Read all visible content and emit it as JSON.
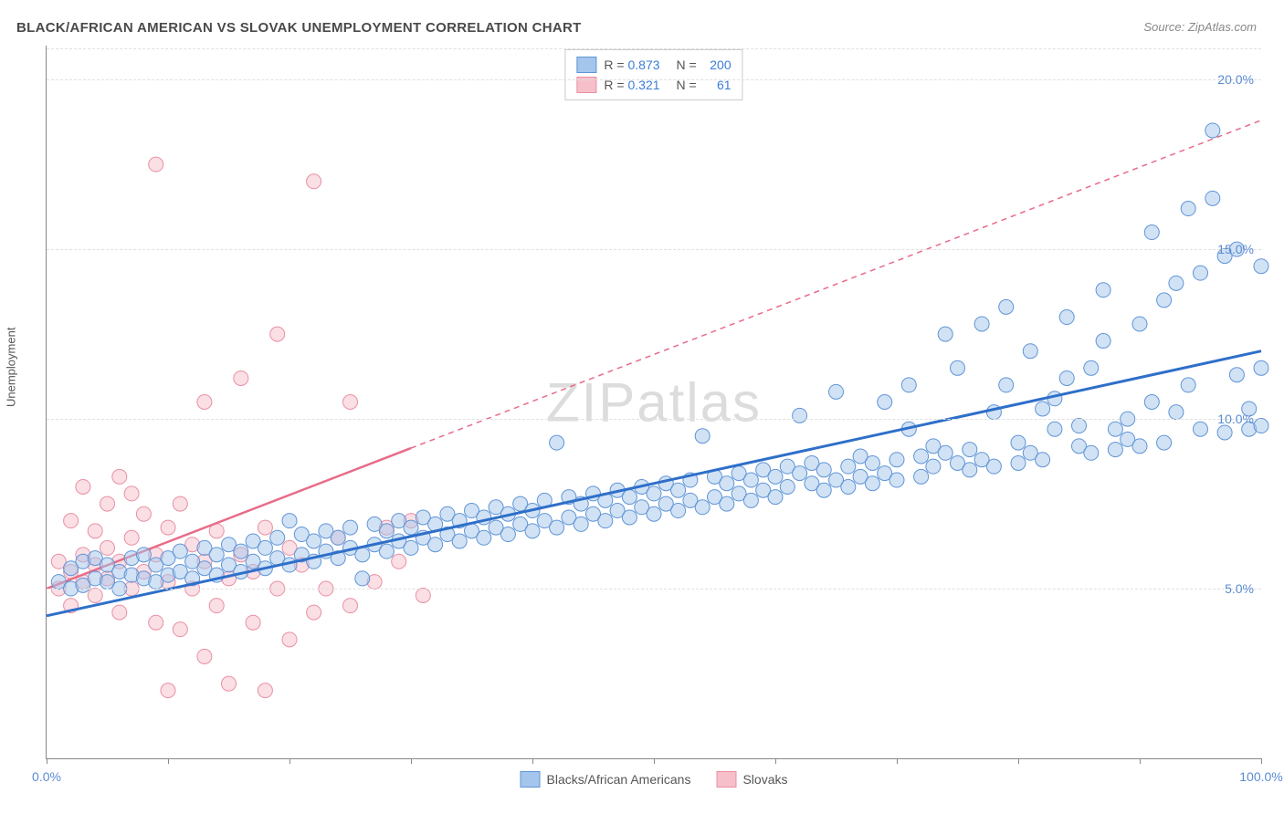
{
  "title": "BLACK/AFRICAN AMERICAN VS SLOVAK UNEMPLOYMENT CORRELATION CHART",
  "source": "Source: ZipAtlas.com",
  "watermark": "ZIPatlas",
  "ylabel": "Unemployment",
  "chart": {
    "type": "scatter",
    "background_color": "#ffffff",
    "grid_color": "#e0e0e0",
    "axis_color": "#888888",
    "marker_radius": 8,
    "marker_opacity": 0.5,
    "xlim": [
      0,
      100
    ],
    "ylim": [
      0,
      21
    ],
    "xticks": [
      0,
      10,
      20,
      30,
      40,
      50,
      60,
      70,
      80,
      90,
      100
    ],
    "xtick_labels_shown": {
      "0": "0.0%",
      "100": "100.0%"
    },
    "yticks": [
      5,
      10,
      15,
      20
    ],
    "ytick_labels": [
      "5.0%",
      "10.0%",
      "15.0%",
      "20.0%"
    ],
    "title_fontsize": 15,
    "label_fontsize": 13,
    "tick_fontsize": 14,
    "tick_label_color": "#5b8bd4"
  },
  "series": {
    "blue": {
      "label": "Blacks/African Americans",
      "fill_color": "#a4c5ec",
      "stroke_color": "#6095d6",
      "line_color": "#2e6fc9",
      "line_width": 3,
      "R": "0.873",
      "N": "200",
      "trend": {
        "x1": 0,
        "y1": 4.2,
        "x2": 100,
        "y2": 12.0
      },
      "points": [
        [
          1,
          5.2
        ],
        [
          2,
          5.0
        ],
        [
          2,
          5.6
        ],
        [
          3,
          5.1
        ],
        [
          3,
          5.8
        ],
        [
          4,
          5.3
        ],
        [
          4,
          5.9
        ],
        [
          5,
          5.2
        ],
        [
          5,
          5.7
        ],
        [
          6,
          5.0
        ],
        [
          6,
          5.5
        ],
        [
          7,
          5.4
        ],
        [
          7,
          5.9
        ],
        [
          8,
          5.3
        ],
        [
          8,
          6.0
        ],
        [
          9,
          5.2
        ],
        [
          9,
          5.7
        ],
        [
          10,
          5.4
        ],
        [
          10,
          5.9
        ],
        [
          11,
          5.5
        ],
        [
          11,
          6.1
        ],
        [
          12,
          5.3
        ],
        [
          12,
          5.8
        ],
        [
          13,
          5.6
        ],
        [
          13,
          6.2
        ],
        [
          14,
          5.4
        ],
        [
          14,
          6.0
        ],
        [
          15,
          5.7
        ],
        [
          15,
          6.3
        ],
        [
          16,
          5.5
        ],
        [
          16,
          6.1
        ],
        [
          17,
          5.8
        ],
        [
          17,
          6.4
        ],
        [
          18,
          5.6
        ],
        [
          18,
          6.2
        ],
        [
          19,
          5.9
        ],
        [
          19,
          6.5
        ],
        [
          20,
          5.7
        ],
        [
          20,
          7.0
        ],
        [
          21,
          6.0
        ],
        [
          21,
          6.6
        ],
        [
          22,
          5.8
        ],
        [
          22,
          6.4
        ],
        [
          23,
          6.1
        ],
        [
          23,
          6.7
        ],
        [
          24,
          5.9
        ],
        [
          24,
          6.5
        ],
        [
          25,
          6.2
        ],
        [
          25,
          6.8
        ],
        [
          26,
          6.0
        ],
        [
          26,
          5.3
        ],
        [
          27,
          6.3
        ],
        [
          27,
          6.9
        ],
        [
          28,
          6.1
        ],
        [
          28,
          6.7
        ],
        [
          29,
          6.4
        ],
        [
          29,
          7.0
        ],
        [
          30,
          6.2
        ],
        [
          30,
          6.8
        ],
        [
          31,
          6.5
        ],
        [
          31,
          7.1
        ],
        [
          32,
          6.3
        ],
        [
          32,
          6.9
        ],
        [
          33,
          6.6
        ],
        [
          33,
          7.2
        ],
        [
          34,
          6.4
        ],
        [
          34,
          7.0
        ],
        [
          35,
          6.7
        ],
        [
          35,
          7.3
        ],
        [
          36,
          6.5
        ],
        [
          36,
          7.1
        ],
        [
          37,
          6.8
        ],
        [
          37,
          7.4
        ],
        [
          38,
          6.6
        ],
        [
          38,
          7.2
        ],
        [
          39,
          6.9
        ],
        [
          39,
          7.5
        ],
        [
          40,
          6.7
        ],
        [
          40,
          7.3
        ],
        [
          41,
          7.0
        ],
        [
          41,
          7.6
        ],
        [
          42,
          6.8
        ],
        [
          42,
          9.3
        ],
        [
          43,
          7.1
        ],
        [
          43,
          7.7
        ],
        [
          44,
          6.9
        ],
        [
          44,
          7.5
        ],
        [
          45,
          7.2
        ],
        [
          45,
          7.8
        ],
        [
          46,
          7.0
        ],
        [
          46,
          7.6
        ],
        [
          47,
          7.3
        ],
        [
          47,
          7.9
        ],
        [
          48,
          7.1
        ],
        [
          48,
          7.7
        ],
        [
          49,
          7.4
        ],
        [
          49,
          8.0
        ],
        [
          50,
          7.2
        ],
        [
          50,
          7.8
        ],
        [
          51,
          7.5
        ],
        [
          51,
          8.1
        ],
        [
          52,
          7.3
        ],
        [
          52,
          7.9
        ],
        [
          53,
          7.6
        ],
        [
          53,
          8.2
        ],
        [
          54,
          7.4
        ],
        [
          54,
          9.5
        ],
        [
          55,
          7.7
        ],
        [
          55,
          8.3
        ],
        [
          56,
          7.5
        ],
        [
          56,
          8.1
        ],
        [
          57,
          7.8
        ],
        [
          57,
          8.4
        ],
        [
          58,
          7.6
        ],
        [
          58,
          8.2
        ],
        [
          59,
          7.9
        ],
        [
          59,
          8.5
        ],
        [
          60,
          7.7
        ],
        [
          60,
          8.3
        ],
        [
          61,
          8.0
        ],
        [
          61,
          8.6
        ],
        [
          62,
          10.1
        ],
        [
          62,
          8.4
        ],
        [
          63,
          8.1
        ],
        [
          63,
          8.7
        ],
        [
          64,
          7.9
        ],
        [
          64,
          8.5
        ],
        [
          65,
          8.2
        ],
        [
          65,
          10.8
        ],
        [
          66,
          8.0
        ],
        [
          66,
          8.6
        ],
        [
          67,
          8.3
        ],
        [
          67,
          8.9
        ],
        [
          68,
          8.1
        ],
        [
          68,
          8.7
        ],
        [
          69,
          8.4
        ],
        [
          69,
          10.5
        ],
        [
          70,
          8.2
        ],
        [
          70,
          8.8
        ],
        [
          71,
          9.7
        ],
        [
          71,
          11.0
        ],
        [
          72,
          8.3
        ],
        [
          72,
          8.9
        ],
        [
          73,
          8.6
        ],
        [
          73,
          9.2
        ],
        [
          74,
          12.5
        ],
        [
          74,
          9.0
        ],
        [
          75,
          8.7
        ],
        [
          75,
          11.5
        ],
        [
          76,
          8.5
        ],
        [
          76,
          9.1
        ],
        [
          77,
          8.8
        ],
        [
          77,
          12.8
        ],
        [
          78,
          8.6
        ],
        [
          78,
          10.2
        ],
        [
          79,
          11.0
        ],
        [
          79,
          13.3
        ],
        [
          80,
          8.7
        ],
        [
          80,
          9.3
        ],
        [
          81,
          9.0
        ],
        [
          81,
          12.0
        ],
        [
          82,
          8.8
        ],
        [
          82,
          10.3
        ],
        [
          83,
          10.6
        ],
        [
          83,
          9.7
        ],
        [
          84,
          11.2
        ],
        [
          84,
          13.0
        ],
        [
          85,
          9.2
        ],
        [
          85,
          9.8
        ],
        [
          86,
          9.0
        ],
        [
          86,
          11.5
        ],
        [
          87,
          12.3
        ],
        [
          87,
          13.8
        ],
        [
          88,
          9.1
        ],
        [
          88,
          9.7
        ],
        [
          89,
          9.4
        ],
        [
          89,
          10.0
        ],
        [
          90,
          9.2
        ],
        [
          90,
          12.8
        ],
        [
          91,
          10.5
        ],
        [
          91,
          15.5
        ],
        [
          92,
          9.3
        ],
        [
          92,
          13.5
        ],
        [
          93,
          14.0
        ],
        [
          93,
          10.2
        ],
        [
          94,
          11.0
        ],
        [
          94,
          16.2
        ],
        [
          95,
          9.7
        ],
        [
          95,
          14.3
        ],
        [
          96,
          16.5
        ],
        [
          96,
          18.5
        ],
        [
          97,
          9.6
        ],
        [
          97,
          14.8
        ],
        [
          98,
          11.3
        ],
        [
          98,
          15.0
        ],
        [
          99,
          9.7
        ],
        [
          99,
          10.3
        ],
        [
          100,
          11.5
        ],
        [
          100,
          14.5
        ],
        [
          100,
          9.8
        ]
      ]
    },
    "pink": {
      "label": "Slovaks",
      "fill_color": "#f6c0cb",
      "stroke_color": "#ea8fa3",
      "line_color": "#e86b88",
      "line_width": 2.5,
      "dash_after_x": 30,
      "R": "0.321",
      "N": "61",
      "trend": {
        "x1": 0,
        "y1": 5.0,
        "x2": 100,
        "y2": 18.8
      },
      "points": [
        [
          1,
          5.0
        ],
        [
          1,
          5.8
        ],
        [
          2,
          4.5
        ],
        [
          2,
          5.5
        ],
        [
          2,
          7.0
        ],
        [
          3,
          5.2
        ],
        [
          3,
          6.0
        ],
        [
          3,
          8.0
        ],
        [
          4,
          4.8
        ],
        [
          4,
          5.7
        ],
        [
          4,
          6.7
        ],
        [
          5,
          5.3
        ],
        [
          5,
          6.2
        ],
        [
          5,
          7.5
        ],
        [
          6,
          4.3
        ],
        [
          6,
          5.8
        ],
        [
          6,
          8.3
        ],
        [
          7,
          5.0
        ],
        [
          7,
          6.5
        ],
        [
          7,
          7.8
        ],
        [
          8,
          5.5
        ],
        [
          8,
          7.2
        ],
        [
          9,
          4.0
        ],
        [
          9,
          6.0
        ],
        [
          9,
          17.5
        ],
        [
          10,
          5.2
        ],
        [
          10,
          6.8
        ],
        [
          10,
          2.0
        ],
        [
          11,
          3.8
        ],
        [
          11,
          7.5
        ],
        [
          12,
          5.0
        ],
        [
          12,
          6.3
        ],
        [
          13,
          3.0
        ],
        [
          13,
          5.8
        ],
        [
          13,
          10.5
        ],
        [
          14,
          4.5
        ],
        [
          14,
          6.7
        ],
        [
          15,
          5.3
        ],
        [
          15,
          2.2
        ],
        [
          16,
          6.0
        ],
        [
          16,
          11.2
        ],
        [
          17,
          4.0
        ],
        [
          17,
          5.5
        ],
        [
          18,
          6.8
        ],
        [
          18,
          2.0
        ],
        [
          19,
          5.0
        ],
        [
          19,
          12.5
        ],
        [
          20,
          3.5
        ],
        [
          20,
          6.2
        ],
        [
          21,
          5.7
        ],
        [
          22,
          4.3
        ],
        [
          22,
          17.0
        ],
        [
          23,
          5.0
        ],
        [
          24,
          6.5
        ],
        [
          25,
          10.5
        ],
        [
          25,
          4.5
        ],
        [
          27,
          5.2
        ],
        [
          28,
          6.8
        ],
        [
          29,
          5.8
        ],
        [
          30,
          7.0
        ],
        [
          31,
          4.8
        ]
      ]
    }
  },
  "legend_top": [
    {
      "swatch_fill": "#a4c5ec",
      "swatch_stroke": "#6095d6",
      "r_label": "R =",
      "r_val": "0.873",
      "n_label": "N =",
      "n_val": "200"
    },
    {
      "swatch_fill": "#f6c0cb",
      "swatch_stroke": "#ea8fa3",
      "r_label": "R =",
      "r_val": "0.321",
      "n_label": "N =",
      "n_val": "61"
    }
  ],
  "legend_bottom": [
    {
      "swatch_fill": "#a4c5ec",
      "swatch_stroke": "#6095d6",
      "label": "Blacks/African Americans"
    },
    {
      "swatch_fill": "#f6c0cb",
      "swatch_stroke": "#ea8fa3",
      "label": "Slovaks"
    }
  ]
}
